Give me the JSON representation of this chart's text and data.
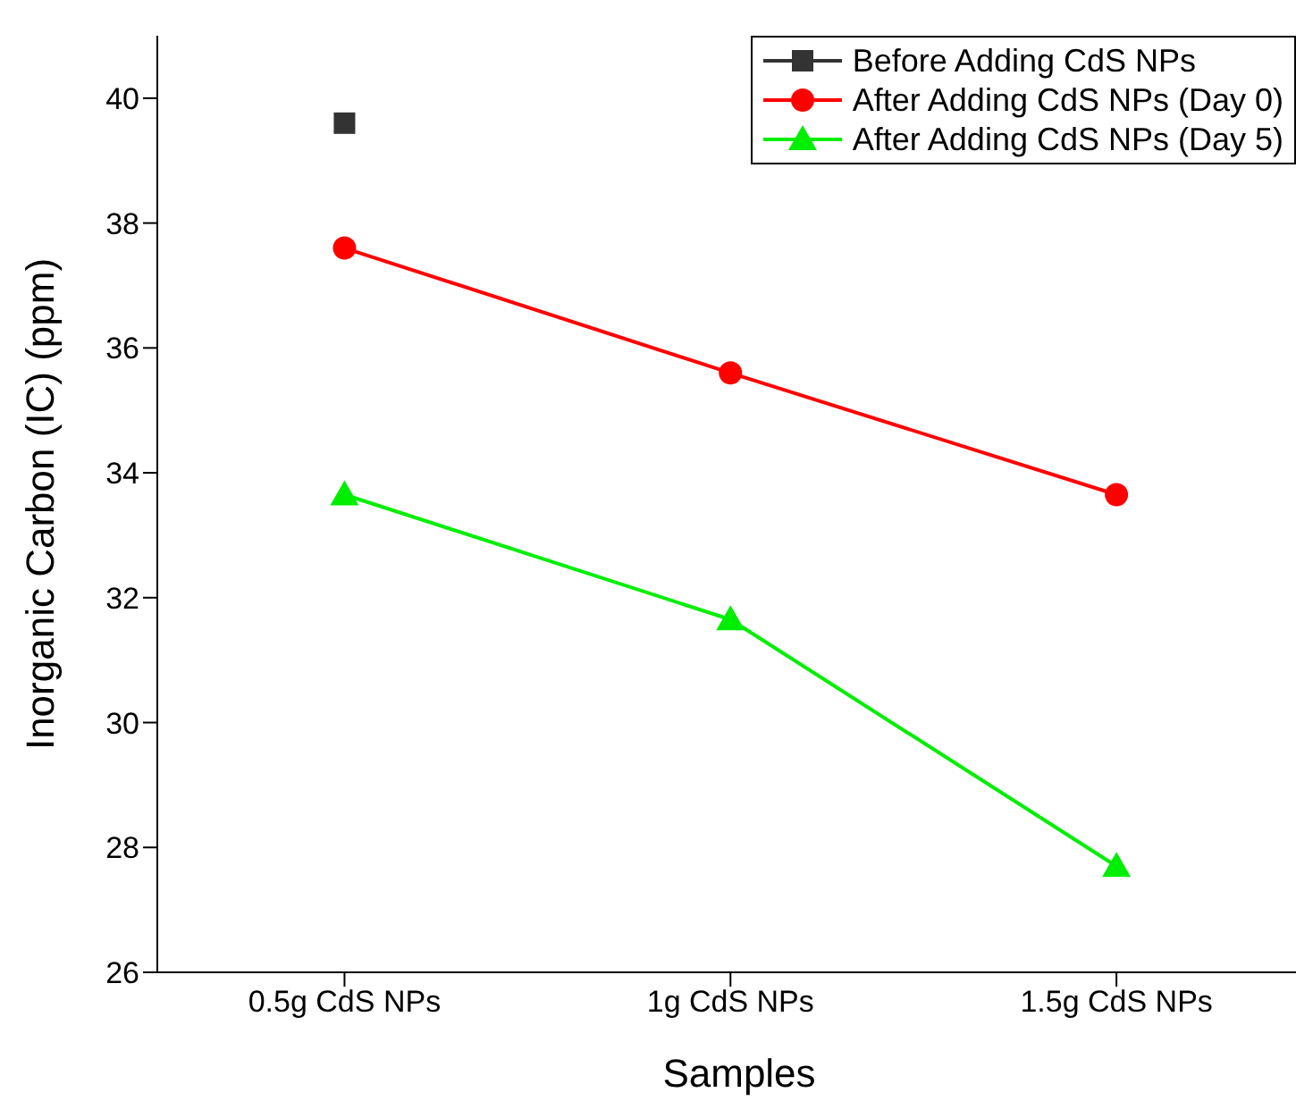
{
  "chart_data": {
    "type": "line",
    "xlabel": "Samples",
    "ylabel": "Inorganic Carbon (IC) (ppm)",
    "categories": [
      "0.5g CdS NPs",
      "1g CdS NPs",
      "1.5g CdS NPs"
    ],
    "series": [
      {
        "name": "Before Adding CdS NPs",
        "color": "#333333",
        "marker": "square",
        "values": [
          39.6,
          null,
          null
        ]
      },
      {
        "name": "After Adding CdS NPs (Day 0)",
        "color": "#ff0000",
        "marker": "circle",
        "values": [
          37.6,
          35.6,
          33.65
        ]
      },
      {
        "name": "After Adding CdS NPs (Day 5)",
        "color": "#00ee00",
        "marker": "triangle",
        "values": [
          33.65,
          31.65,
          27.7
        ]
      }
    ],
    "ylim": [
      26,
      41
    ],
    "yticks": [
      26,
      28,
      30,
      32,
      34,
      36,
      38,
      40
    ],
    "grid": false,
    "legend": "top right"
  }
}
